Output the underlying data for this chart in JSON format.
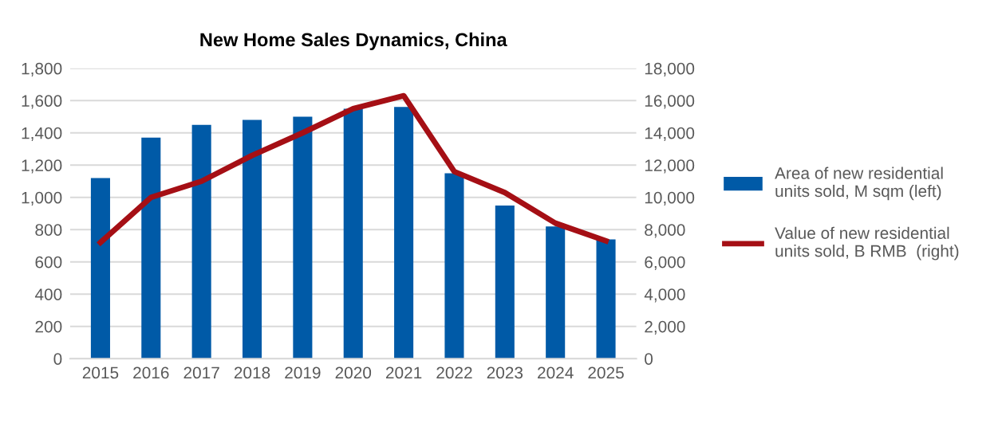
{
  "chart_data": {
    "type": "bar",
    "title": "New Home Sales Dynamics, China",
    "categories": [
      "2015",
      "2016",
      "2017",
      "2018",
      "2019",
      "2020",
      "2021",
      "2022",
      "2023",
      "2024",
      "2025"
    ],
    "series": [
      {
        "name": "Area of new residential units sold, M sqm (left)",
        "color": "#005aa7",
        "values": [
          1120,
          1370,
          1450,
          1480,
          1500,
          1550,
          1560,
          1150,
          950,
          820,
          740
        ]
      },
      {
        "name": "Value of new residential units sold, B RMB  (right)",
        "color": "#a50f15",
        "type": "line",
        "axis": "y2",
        "values": [
          7200,
          10000,
          11000,
          12600,
          14000,
          15500,
          16300,
          11600,
          10300,
          8400,
          7300
        ]
      }
    ],
    "ylim": [
      0,
      1800
    ],
    "yticks": [
      0,
      200,
      400,
      600,
      800,
      {
        "value": 1000,
        "label": "1,000"
      },
      {
        "value": 1200,
        "label": "1,200"
      },
      {
        "value": 1400,
        "label": "1,400"
      },
      {
        "value": 1600,
        "label": "1,600"
      },
      {
        "value": 1800,
        "label": "1,800"
      }
    ],
    "y2lim": [
      0,
      18000
    ],
    "y2ticks": [
      0,
      {
        "value": 2000,
        "label": "2,000"
      },
      {
        "value": 4000,
        "label": "4,000"
      },
      {
        "value": 6000,
        "label": "6,000"
      },
      {
        "value": 8000,
        "label": "8,000"
      },
      {
        "value": 10000,
        "label": "10,000"
      },
      {
        "value": 12000,
        "label": "12,000"
      },
      {
        "value": 14000,
        "label": "14,000"
      },
      {
        "value": 16000,
        "label": "16,000"
      },
      {
        "value": 18000,
        "label": "18,000"
      }
    ],
    "grid": "y",
    "legend": "right",
    "marker": "none",
    "line_style": "solid"
  }
}
